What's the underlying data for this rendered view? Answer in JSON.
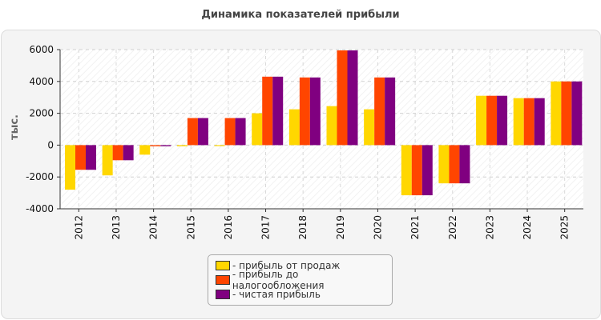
{
  "title": "Динамика показателей прибыли",
  "chart_data": {
    "type": "bar",
    "title": "Динамика показателей прибыли",
    "ylabel": "тыс.",
    "xlabel": "",
    "ylim": [
      -4000,
      6000
    ],
    "yticks": [
      6000,
      4000,
      2000,
      0,
      -2000,
      -4000
    ],
    "categories": [
      "2012",
      "2013",
      "2014",
      "2015",
      "2016",
      "2017",
      "2018",
      "2019",
      "2020",
      "2021",
      "2022",
      "2023",
      "2024",
      "2025"
    ],
    "series": [
      {
        "name": "прибыль от продаж",
        "color": "#ffd700",
        "values": [
          -2800,
          -1900,
          -600,
          -70,
          -60,
          2000,
          2250,
          2450,
          2250,
          -3150,
          -2400,
          3100,
          2950,
          4000
        ]
      },
      {
        "name": "прибыль до налогообложения",
        "color": "#ff4500",
        "values": [
          -1550,
          -950,
          -70,
          1700,
          1700,
          4300,
          4250,
          5950,
          4250,
          -3150,
          -2400,
          3100,
          2950,
          4000
        ]
      },
      {
        "name": "чистая прибыль",
        "color": "#800080",
        "values": [
          -1550,
          -950,
          -70,
          1700,
          1700,
          4300,
          4250,
          5950,
          4250,
          -3150,
          -2400,
          3100,
          2950,
          4000
        ]
      }
    ],
    "grid": true,
    "legend": "bottom"
  },
  "legend": {
    "items": [
      {
        "label": "- прибыль от продаж",
        "color": "#ffd700"
      },
      {
        "label": "- прибыль до налогообложения",
        "color": "#ff4500"
      },
      {
        "label": "- чистая прибыль",
        "color": "#800080"
      }
    ]
  }
}
